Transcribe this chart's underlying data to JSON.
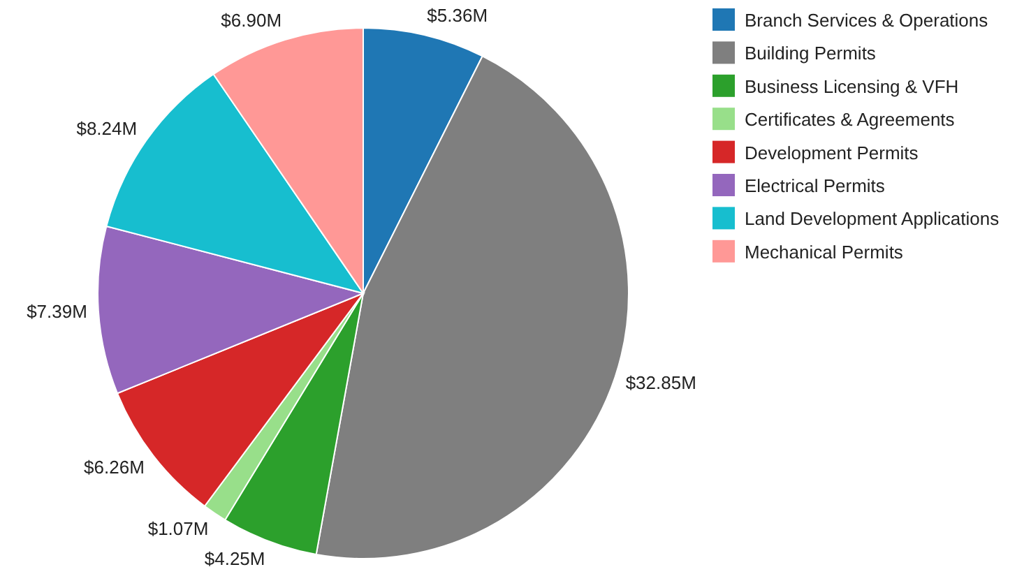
{
  "chart_data": {
    "type": "pie",
    "categories": [
      "Branch Services & Operations",
      "Building Permits",
      "Business Licensing & VFH",
      "Certificates & Agreements",
      "Development Permits",
      "Electrical Permits",
      "Land Development Applications",
      "Mechanical Permits"
    ],
    "values": [
      5.36,
      32.85,
      4.25,
      1.07,
      6.26,
      7.39,
      8.24,
      6.9
    ],
    "value_labels": [
      "$5.36M",
      "$32.85M",
      "$4.25M",
      "$1.07M",
      "$6.26M",
      "$7.39M",
      "$8.24M",
      "$6.90M"
    ],
    "colors": [
      "#1f77b4",
      "#7f7f7f",
      "#2ca02c",
      "#98df8a",
      "#d62728",
      "#9467bd",
      "#17becf",
      "#ff9896"
    ],
    "legend": "top right"
  }
}
